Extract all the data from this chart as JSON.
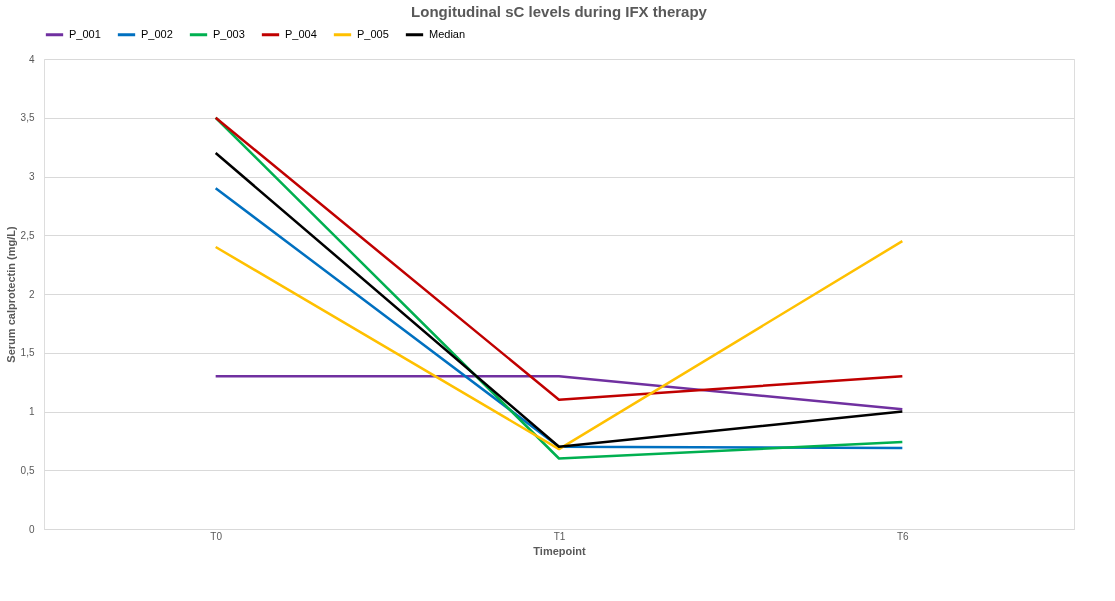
{
  "chart_data": {
    "type": "line",
    "title": "Longitudinal sC levels during IFX therapy",
    "xlabel": "Timepoint",
    "ylabel": "Serum calprotectin (mg/L)",
    "categories": [
      "T0",
      "T1",
      "T6"
    ],
    "series": [
      {
        "name": "P_001",
        "color": "#7030a0",
        "values": [
          1.3,
          1.3,
          1.02
        ]
      },
      {
        "name": "P_002",
        "color": "#0070c0",
        "values": [
          2.9,
          0.7,
          0.69
        ]
      },
      {
        "name": "P_003",
        "color": "#00b050",
        "values": [
          3.5,
          0.6,
          0.74
        ]
      },
      {
        "name": "P_004",
        "color": "#c00000",
        "values": [
          3.5,
          1.1,
          1.3
        ]
      },
      {
        "name": "P_005",
        "color": "#ffc000",
        "values": [
          2.4,
          0.68,
          2.45
        ]
      },
      {
        "name": "Median",
        "color": "#000000",
        "values": [
          3.2,
          0.7,
          1.0
        ]
      }
    ],
    "ylim": [
      0,
      4
    ],
    "yticks": [
      0,
      {
        "value": 0.5,
        "label": "0,5"
      },
      1,
      {
        "value": 1.5,
        "label": "1,5"
      },
      2,
      {
        "value": 2.5,
        "label": "2,5"
      },
      3,
      {
        "value": 3.5,
        "label": "3,5"
      },
      4
    ],
    "grid": "y",
    "legend": "top",
    "marker": "none",
    "line_style": "solid"
  }
}
